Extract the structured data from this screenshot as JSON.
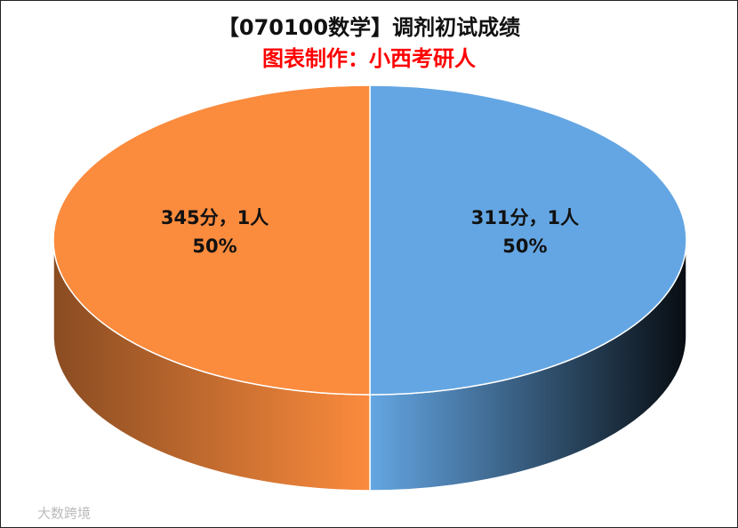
{
  "chart_data": {
    "type": "pie",
    "title": "【070100数学】调剂初试成绩",
    "subtitle": "图表制作：小西考研人",
    "categories": [
      "311分，1人",
      "345分，1人"
    ],
    "values": [
      50,
      50
    ],
    "value_labels": [
      "50%",
      "50%"
    ],
    "colors": [
      "#64a6e3",
      "#fb8b3d"
    ],
    "watermark": "大数跨境"
  }
}
